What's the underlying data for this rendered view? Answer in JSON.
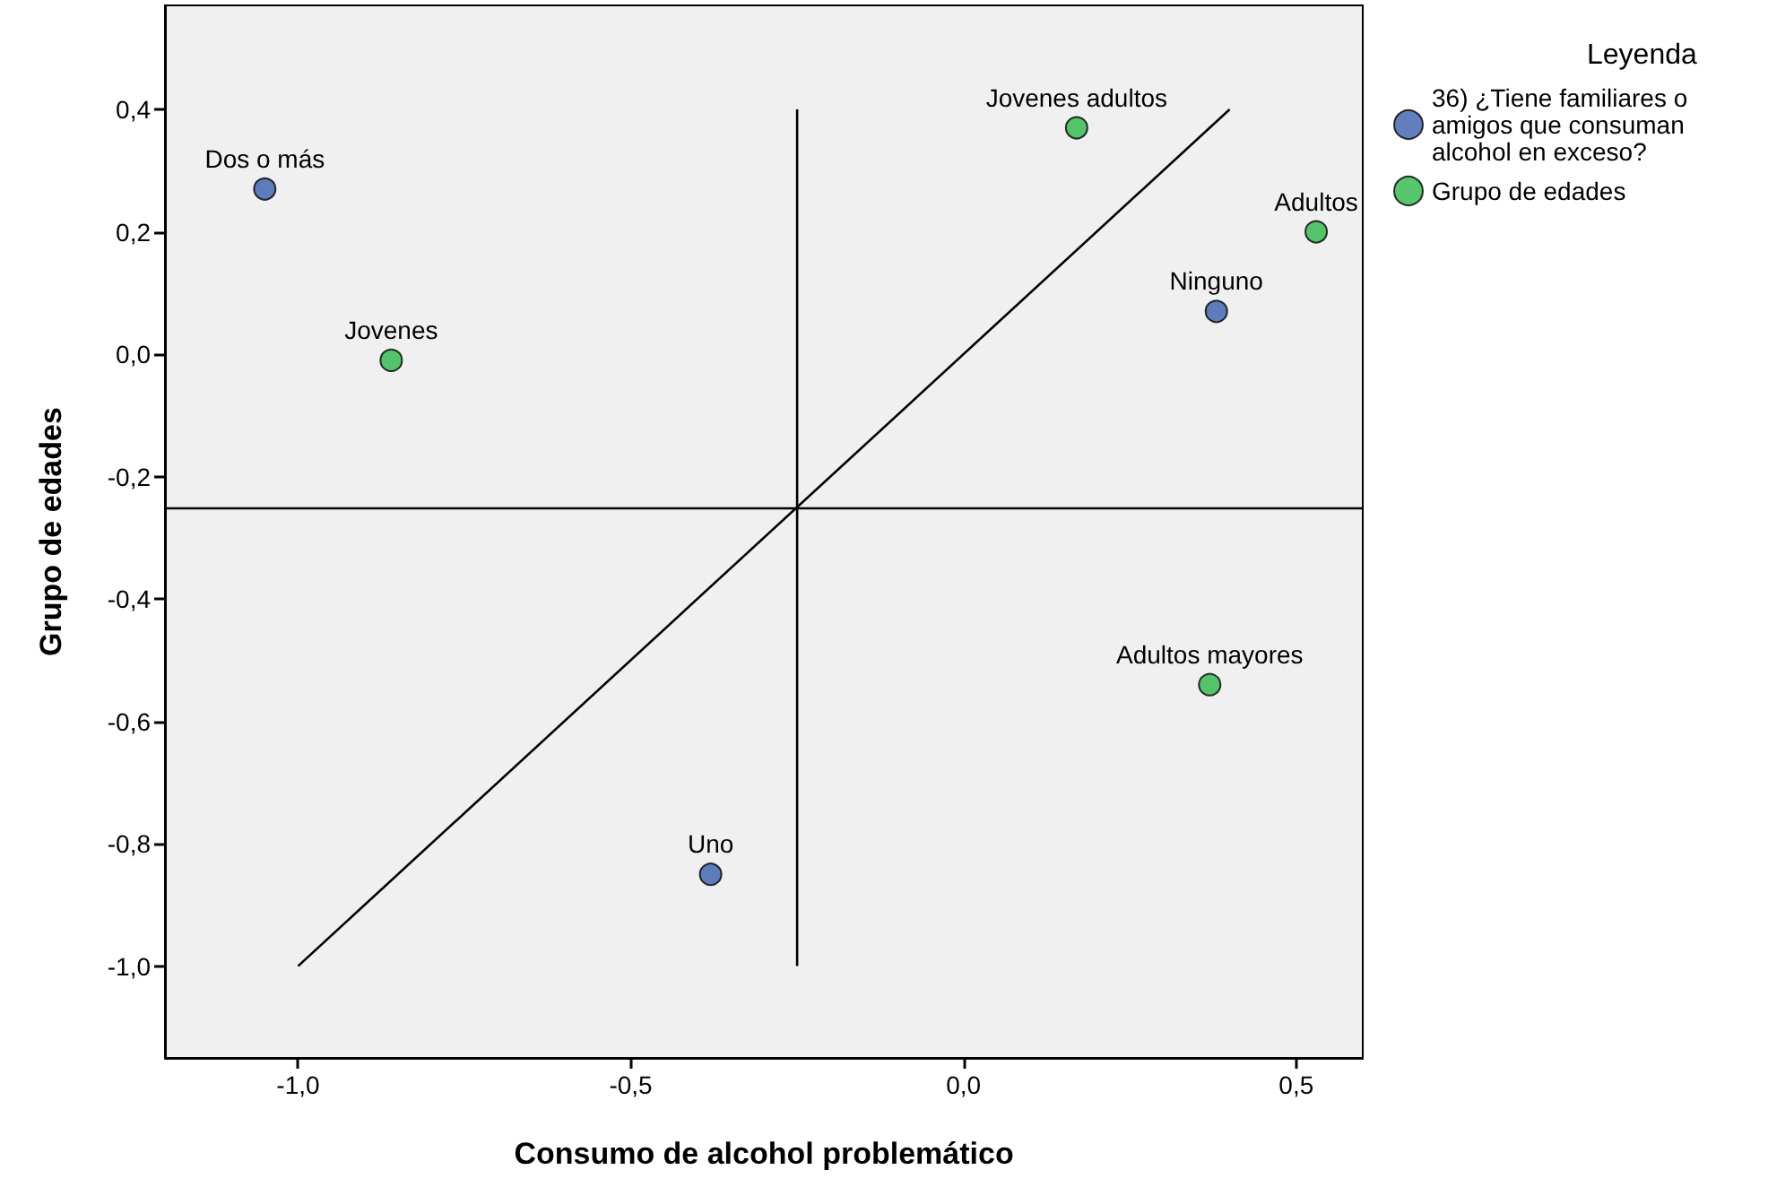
{
  "chart_data": {
    "type": "scatter",
    "xlabel": "Consumo de alcohol problemático",
    "ylabel": "Grupo de edades",
    "legend_title": "Leyenda",
    "xlim": [
      -1.2,
      0.6
    ],
    "xticks": [
      {
        "value": -1.0,
        "label": "-1,0"
      },
      {
        "value": -0.5,
        "label": "-0,5"
      },
      {
        "value": 0.0,
        "label": "0,0"
      },
      {
        "value": 0.5,
        "label": "0,5"
      }
    ],
    "ylim": [
      -1.15,
      0.57
    ],
    "yticks": [
      {
        "value": 0.4,
        "label": "0,4"
      },
      {
        "value": 0.2,
        "label": "0,2"
      },
      {
        "value": 0.0,
        "label": "0,0"
      },
      {
        "value": -0.2,
        "label": "-0,2"
      },
      {
        "value": -0.4,
        "label": "-0,4"
      },
      {
        "value": -0.6,
        "label": "-0,6"
      },
      {
        "value": -0.8,
        "label": "-0,8"
      },
      {
        "value": -1.0,
        "label": "-1,0"
      }
    ],
    "grid": false,
    "legend": "top right",
    "marker": "circle",
    "series": [
      {
        "name": "36) ¿Tiene familiares o amigos que consuman alcohol en exceso?",
        "color": "#3a5fad",
        "x": [
          -1.05,
          0.38,
          -0.38
        ],
        "values": [
          0.27,
          0.07,
          -0.85
        ]
      },
      {
        "name": "Grupo de edades",
        "color": "#2db84a",
        "x": [
          -0.86,
          0.17,
          0.53,
          0.37
        ],
        "values": [
          -0.01,
          0.37,
          0.2,
          -0.54
        ]
      },
      {
        "type": "line",
        "marker": "none",
        "color": "#000000",
        "x": [
          -1.0,
          0.4
        ],
        "values": [
          -1.0,
          0.4
        ]
      },
      {
        "type": "line",
        "marker": "none",
        "color": "#000000",
        "x": [
          -0.25,
          -0.25
        ],
        "values": [
          -1.0,
          0.4
        ]
      }
    ],
    "ref_lines": [
      {
        "axis": "y",
        "value": -0.25,
        "color": "#000000"
      }
    ],
    "annotations": [
      {
        "text": "Dos o más",
        "x": -1.05,
        "y": 0.27
      },
      {
        "text": "Ninguno",
        "x": 0.38,
        "y": 0.07
      },
      {
        "text": "Uno",
        "x": -0.38,
        "y": -0.85
      },
      {
        "text": "Jovenes",
        "x": -0.86,
        "y": -0.01
      },
      {
        "text": "Jovenes adultos",
        "x": 0.17,
        "y": 0.37
      },
      {
        "text": "Adultos",
        "x": 0.53,
        "y": 0.2
      },
      {
        "text": "Adultos mayores",
        "x": 0.37,
        "y": -0.54
      }
    ]
  }
}
